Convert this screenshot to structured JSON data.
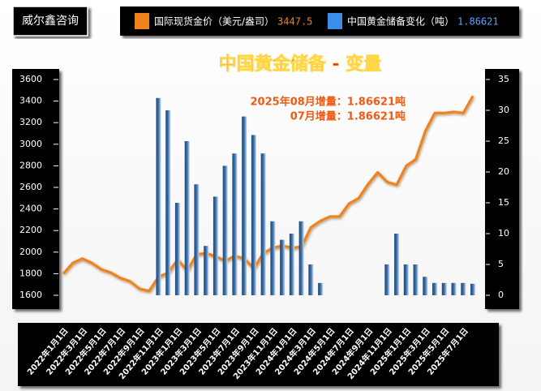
{
  "brand": "威尔鑫咨询",
  "chart_data": {
    "type": "bar-line",
    "title": "中国黄金储备 - 变量",
    "annotations": [
      "2025年08月增量：1.86621吨",
      "07月增量：1.86621吨"
    ],
    "categories": [
      "2022年1月1日",
      null,
      "2022年3月1日",
      null,
      "2022年5月1日",
      null,
      "2022年7月1日",
      null,
      "2022年9月1日",
      null,
      "2022年11月1日",
      null,
      "2023年1月1日",
      null,
      "2023年3月1日",
      null,
      "2023年5月1日",
      null,
      "2023年7月1日",
      null,
      "2023年9月1日",
      null,
      "2023年11月1日",
      null,
      "2024年1月1日",
      null,
      "2024年3月1日",
      null,
      "2024年5月1日",
      null,
      "2024年7月1日",
      null,
      "2024年9月1日",
      null,
      "2024年11月1日",
      null,
      "2025年1月1日",
      null,
      "2025年3月1日",
      null,
      "2025年5月1日",
      null,
      "2025年7月1日",
      null
    ],
    "series": [
      {
        "name": "国际现货金价（美元/盎司）",
        "color": "#f0821e",
        "type": "line",
        "axis": "y",
        "values": [
          1800,
          1900,
          1940,
          1900,
          1840,
          1810,
          1760,
          1730,
          1660,
          1640,
          1770,
          1810,
          1930,
          1830,
          1980,
          1990,
          1960,
          1920,
          1965,
          1940,
          1850,
          1990,
          2040,
          2060,
          2040,
          2050,
          2230,
          2290,
          2330,
          2330,
          2450,
          2500,
          2630,
          2740,
          2650,
          2625,
          2800,
          2860,
          3120,
          3290,
          3290,
          3300,
          3290,
          3447.5
        ]
      },
      {
        "name": "中国黄金储备变化（吨）",
        "color": "#2b5a8c",
        "type": "bar",
        "axis": "y2",
        "values": [
          null,
          null,
          null,
          null,
          null,
          null,
          null,
          null,
          null,
          null,
          32,
          30,
          15,
          25,
          18,
          8,
          16,
          21,
          23,
          29,
          26,
          23,
          12,
          9,
          10,
          12,
          5,
          2,
          null,
          null,
          null,
          null,
          null,
          null,
          5,
          10,
          5,
          5,
          3,
          2,
          2,
          2,
          2,
          1.86621
        ]
      }
    ],
    "ylim": [
      1600,
      3600
    ],
    "yticks": [
      1600,
      1800,
      2000,
      2200,
      2400,
      2600,
      2800,
      3000,
      3200,
      3400,
      3600
    ],
    "y2lim": [
      0,
      35
    ],
    "y2ticks": [
      0,
      5,
      10,
      15,
      20,
      25,
      30,
      35
    ]
  }
}
